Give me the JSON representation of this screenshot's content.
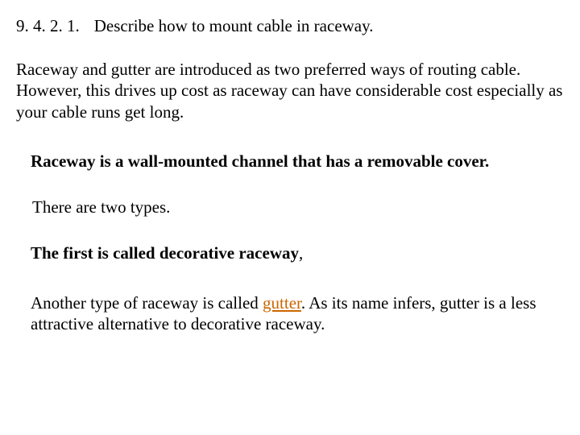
{
  "heading": {
    "number": "9. 4. 2. 1.",
    "title": "Describe how to mount cable in raceway."
  },
  "intro": " Raceway and gutter are introduced as two preferred ways of routing cable. However, this drives up cost as raceway can have considerable cost especially as your cable runs get long.",
  "bold_def": "Raceway is a wall-mounted channel that has a removable cover.",
  "two_types": "There are two types.",
  "first_type": "The first is called decorative raceway",
  "first_type_comma": ",",
  "gutter": {
    "part1": "Another type of raceway is called ",
    "word": "gutter",
    "part2": ". As its name infers, gutter is a less attractive alternative to decorative raceway."
  },
  "colors": {
    "text": "#000000",
    "background": "#ffffff",
    "link": "#cc6600"
  },
  "font": {
    "family": "Times New Roman",
    "body_size_pt": 16
  }
}
